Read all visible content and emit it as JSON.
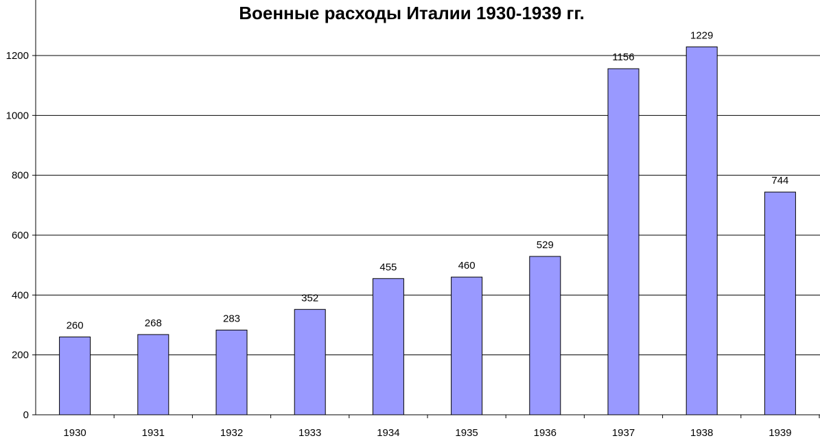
{
  "chart_data": {
    "type": "bar",
    "title": "Военные расходы Италии 1930-1939 гг.",
    "categories": [
      "1930",
      "1931",
      "1932",
      "1933",
      "1934",
      "1935",
      "1936",
      "1937",
      "1938",
      "1939"
    ],
    "values": [
      260,
      268,
      283,
      352,
      455,
      460,
      529,
      1156,
      1229,
      744
    ],
    "ylim": [
      0,
      1200
    ],
    "yticks": [
      0,
      200,
      400,
      600,
      800,
      1000,
      1200
    ],
    "grid": true,
    "bar_color": "#9999ff",
    "data_labels": true
  }
}
